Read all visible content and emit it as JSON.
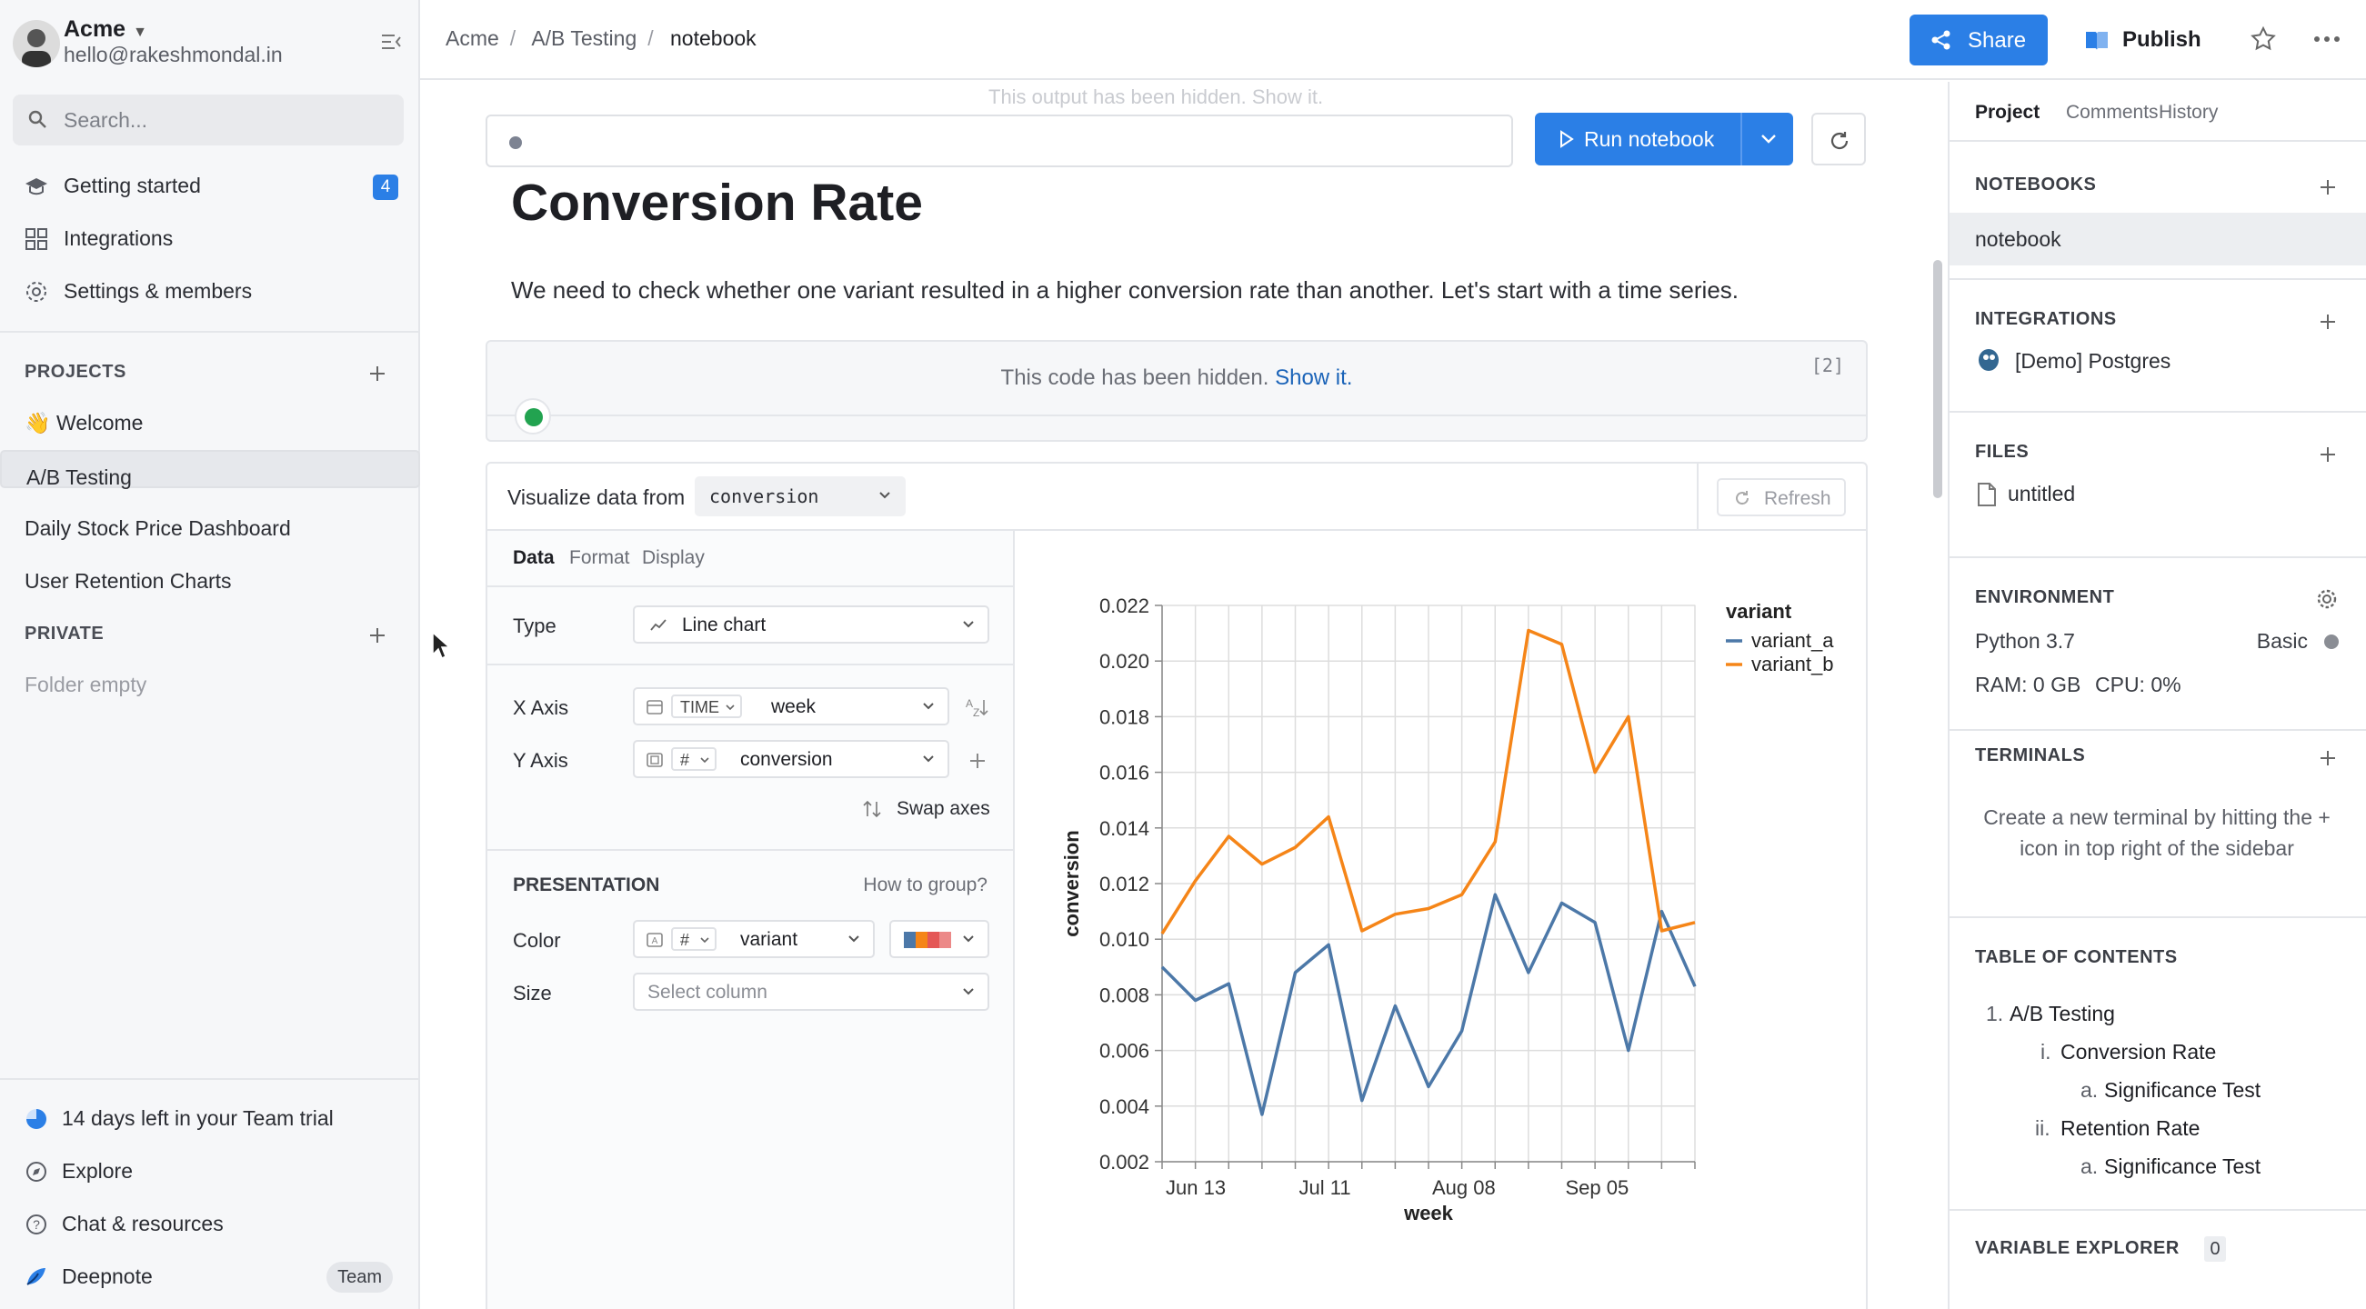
{
  "workspace": {
    "name": "Acme",
    "email": "hello@rakeshmondal.in"
  },
  "search": {
    "placeholder": "Search..."
  },
  "nav": [
    {
      "label": "Getting started",
      "badge": "4"
    },
    {
      "label": "Integrations"
    },
    {
      "label": "Settings & members"
    }
  ],
  "projects": {
    "title": "PROJECTS",
    "items": [
      "👋 Welcome",
      "A/B Testing",
      "Daily Stock Price Dashboard",
      "User Retention Charts"
    ]
  },
  "private": {
    "title": "PRIVATE",
    "empty": "Folder empty"
  },
  "bottom_nav": {
    "trial": "14 days left in your Team trial",
    "explore": "Explore",
    "chat": "Chat & resources",
    "deepnote": "Deepnote",
    "team": "Team"
  },
  "breadcrumb": [
    "Acme",
    "A/B Testing",
    "notebook"
  ],
  "topbar": {
    "share": "Share",
    "publish": "Publish"
  },
  "notebook": {
    "ghost": "This output has been hidden. Show it.",
    "run": "Run notebook",
    "title": "Conversion Rate",
    "paragraph": "We need to check whether one variant resulted in a higher conversion rate than another. Let's start with a time series.",
    "hidden_code": "This code has been hidden.",
    "show_it": "Show it.",
    "cell_number": "[2]"
  },
  "viz": {
    "label": "Visualize data from",
    "source": "conversion",
    "refresh": "Refresh",
    "tabs": [
      "Data",
      "Format",
      "Display"
    ],
    "type_label": "Type",
    "type_value": "Line chart",
    "xaxis_label": "X Axis",
    "x_pill": "TIME",
    "x_value": "week",
    "yaxis_label": "Y Axis",
    "y_pill": "#",
    "y_value": "conversion",
    "swap": "Swap axes",
    "presentation": "PRESENTATION",
    "how_to_group": "How to group?",
    "color_label": "Color",
    "color_pill": "#",
    "color_value": "variant",
    "size_label": "Size",
    "size_placeholder": "Select column"
  },
  "chart_data": {
    "type": "line",
    "xlabel": "week",
    "ylabel": "conversion",
    "ylim": [
      0.002,
      0.022
    ],
    "yticks": [
      "0.022",
      "0.020",
      "0.018",
      "0.016",
      "0.014",
      "0.012",
      "0.010",
      "0.008",
      "0.006",
      "0.004",
      "0.002"
    ],
    "xticks": [
      "Jun 13",
      "Jul 11",
      "Aug 08",
      "Sep 05"
    ],
    "legend_title": "variant",
    "legend_position": "right",
    "grid": true,
    "series": [
      {
        "name": "variant_a",
        "color": "#4c78a8",
        "values": [
          0.009,
          0.0078,
          0.0084,
          0.0037,
          0.0088,
          0.0098,
          0.0042,
          0.0076,
          0.0047,
          0.0067,
          0.0116,
          0.0088,
          0.0113,
          0.0106,
          0.006,
          0.011,
          0.0083
        ]
      },
      {
        "name": "variant_b",
        "color": "#f58518",
        "values": [
          0.0102,
          0.0121,
          0.0137,
          0.0127,
          0.0133,
          0.0144,
          0.0103,
          0.0109,
          0.0111,
          0.0116,
          0.0135,
          0.0211,
          0.0206,
          0.016,
          0.018,
          0.0103,
          0.0106
        ]
      }
    ]
  },
  "right": {
    "tabs": [
      "Project",
      "Comments",
      "History"
    ],
    "notebooks": "NOTEBOOKS",
    "notebook_item": "notebook",
    "integrations": "INTEGRATIONS",
    "integration_item": "[Demo] Postgres",
    "files": "FILES",
    "file_item": "untitled",
    "environment": "ENVIRONMENT",
    "python": "Python 3.7",
    "machine": "Basic",
    "ram": "RAM: 0 GB",
    "cpu": "CPU: 0%",
    "terminals": "TERMINALS",
    "terminal_hint": "Create a new terminal by hitting the + icon in top right of the sidebar",
    "toc_title": "TABLE OF CONTENTS",
    "toc": [
      {
        "num": "1.",
        "text": "A/B Testing"
      },
      {
        "num": "i.",
        "text": "Conversion Rate"
      },
      {
        "num": "a.",
        "text": "Significance Test"
      },
      {
        "num": "ii.",
        "text": "Retention Rate"
      },
      {
        "num": "a.",
        "text": "Significance Test"
      }
    ],
    "var_explorer": "VARIABLE EXPLORER",
    "var_count": "0"
  },
  "colors": {
    "accent": "#2b7fe6",
    "success": "#22a350"
  }
}
